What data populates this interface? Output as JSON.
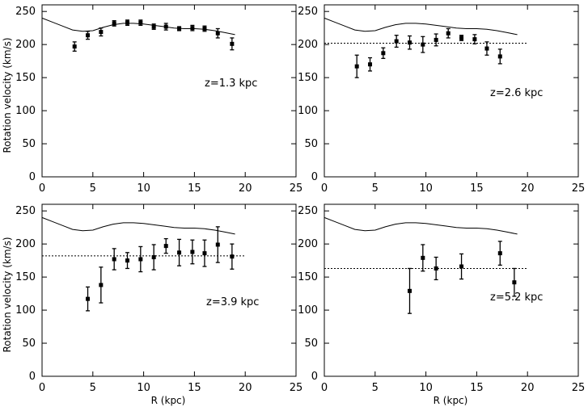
{
  "chart_data": [
    {
      "type": "scatter",
      "panel": "top-left",
      "annotation": "z=1.3 kpc",
      "xlabel": "",
      "ylabel": "Rotation velocity (km/s)",
      "xlim": [
        0,
        25
      ],
      "ylim": [
        0,
        260
      ],
      "xticks": [
        "0",
        "5",
        "10",
        "15",
        "20",
        "25"
      ],
      "yticks": [
        "0",
        "50",
        "100",
        "150",
        "200",
        "250"
      ],
      "model_curve": {
        "x": [
          0,
          1,
          2,
          3,
          4,
          5,
          6,
          7,
          8,
          9,
          10,
          11,
          12,
          13,
          14,
          15,
          16,
          17,
          18,
          19
        ],
        "y": [
          240,
          234,
          228,
          222,
          220,
          221,
          226,
          230,
          232,
          232,
          231,
          229,
          227,
          225,
          224,
          224,
          223,
          221,
          218,
          215
        ]
      },
      "mean_line": null,
      "points": {
        "x": [
          3.2,
          4.5,
          5.8,
          7.1,
          8.4,
          9.7,
          11.0,
          12.2,
          13.5,
          14.8,
          16.0,
          17.3,
          18.7
        ],
        "y": [
          197,
          214,
          219,
          232,
          233,
          233,
          227,
          227,
          224,
          225,
          224,
          217,
          201
        ],
        "err": [
          7,
          6,
          6,
          4,
          4,
          4,
          4,
          5,
          3,
          4,
          4,
          7,
          9
        ]
      }
    },
    {
      "type": "scatter",
      "panel": "top-right",
      "annotation": "z=2.6 kpc",
      "xlabel": "",
      "ylabel": "",
      "xlim": [
        0,
        25
      ],
      "ylim": [
        0,
        260
      ],
      "xticks": [
        "0",
        "5",
        "10",
        "15",
        "20",
        "25"
      ],
      "yticks": [
        "0",
        "50",
        "100",
        "150",
        "200",
        "250"
      ],
      "model_curve": {
        "x": [
          0,
          1,
          2,
          3,
          4,
          5,
          6,
          7,
          8,
          9,
          10,
          11,
          12,
          13,
          14,
          15,
          16,
          17,
          18,
          19
        ],
        "y": [
          240,
          234,
          228,
          222,
          220,
          221,
          226,
          230,
          232,
          232,
          231,
          229,
          227,
          225,
          224,
          224,
          223,
          221,
          218,
          215
        ]
      },
      "mean_line": 202,
      "points": {
        "x": [
          3.2,
          4.5,
          5.8,
          7.1,
          8.4,
          9.7,
          11.0,
          12.2,
          13.5,
          14.8,
          16.0,
          17.3
        ],
        "y": [
          167,
          170,
          187,
          205,
          203,
          200,
          207,
          217,
          210,
          208,
          194,
          182
        ],
        "err": [
          17,
          10,
          8,
          9,
          10,
          12,
          9,
          7,
          4,
          7,
          10,
          11
        ]
      }
    },
    {
      "type": "scatter",
      "panel": "bottom-left",
      "annotation": "z=3.9 kpc",
      "xlabel": "R (kpc)",
      "ylabel": "Rotation velocity (km/s)",
      "xlim": [
        0,
        25
      ],
      "ylim": [
        0,
        260
      ],
      "xticks": [
        "0",
        "5",
        "10",
        "15",
        "20",
        "25"
      ],
      "yticks": [
        "0",
        "50",
        "100",
        "150",
        "200",
        "250"
      ],
      "model_curve": {
        "x": [
          0,
          1,
          2,
          3,
          4,
          5,
          6,
          7,
          8,
          9,
          10,
          11,
          12,
          13,
          14,
          15,
          16,
          17,
          18,
          19
        ],
        "y": [
          240,
          234,
          228,
          222,
          220,
          221,
          226,
          230,
          232,
          232,
          231,
          229,
          227,
          225,
          224,
          224,
          223,
          221,
          218,
          215
        ]
      },
      "mean_line": 182,
      "points": {
        "x": [
          4.5,
          5.8,
          7.1,
          8.4,
          9.7,
          11.0,
          12.2,
          13.5,
          14.8,
          16.0,
          17.3,
          18.7
        ],
        "y": [
          117,
          138,
          177,
          175,
          177,
          180,
          197,
          187,
          188,
          186,
          199,
          181
        ],
        "err": [
          18,
          27,
          16,
          12,
          19,
          19,
          11,
          20,
          18,
          20,
          27,
          19
        ]
      }
    },
    {
      "type": "scatter",
      "panel": "bottom-right",
      "annotation": "z=5.2 kpc",
      "xlabel": "R (kpc)",
      "ylabel": "",
      "xlim": [
        0,
        25
      ],
      "ylim": [
        0,
        260
      ],
      "xticks": [
        "0",
        "5",
        "10",
        "15",
        "20",
        "25"
      ],
      "yticks": [
        "0",
        "50",
        "100",
        "150",
        "200",
        "250"
      ],
      "model_curve": {
        "x": [
          0,
          1,
          2,
          3,
          4,
          5,
          6,
          7,
          8,
          9,
          10,
          11,
          12,
          13,
          14,
          15,
          16,
          17,
          18,
          19
        ],
        "y": [
          240,
          234,
          228,
          222,
          220,
          221,
          226,
          230,
          232,
          232,
          231,
          229,
          227,
          225,
          224,
          224,
          223,
          221,
          218,
          215
        ]
      },
      "mean_line": 163,
      "points": {
        "x": [
          8.4,
          9.7,
          11.0,
          13.5,
          17.3,
          18.7
        ],
        "y": [
          129,
          179,
          163,
          166,
          186,
          142
        ],
        "err": [
          34,
          20,
          17,
          19,
          18,
          21
        ]
      }
    }
  ]
}
